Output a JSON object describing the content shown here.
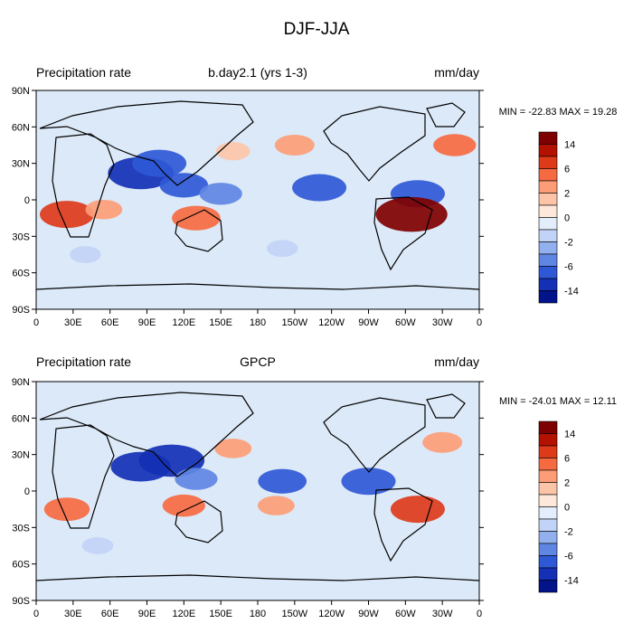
{
  "figure": {
    "title": "DJF-JJA"
  },
  "panels": [
    {
      "left_label": "Precipitation rate",
      "center_label": "b.day2.1 (yrs 1-3)",
      "right_label": "mm/day",
      "stats": "MIN = -22.83 MAX =  19.28"
    },
    {
      "left_label": "Precipitation rate",
      "center_label": "GPCP",
      "right_label": "mm/day",
      "stats": "MIN = -24.01 MAX =  12.11"
    }
  ],
  "chart_data": [
    {
      "type": "heatmap",
      "title": "b.day2.1 (yrs 1-3)",
      "units": "mm/day",
      "min": -22.83,
      "max": 19.28,
      "xlim": [
        0,
        360
      ],
      "ylim": [
        -90,
        90
      ],
      "x_ticks": [
        "0",
        "30E",
        "60E",
        "90E",
        "120E",
        "150E",
        "180",
        "150W",
        "120W",
        "90W",
        "60W",
        "30W",
        "0"
      ],
      "y_ticks": [
        "90N",
        "60N",
        "30N",
        "0",
        "30S",
        "60S",
        "90S"
      ],
      "features": [
        {
          "lon": 25,
          "lat": -12,
          "value": 10
        },
        {
          "lon": 55,
          "lat": -8,
          "value": 4
        },
        {
          "lon": 85,
          "lat": 22,
          "value": -14
        },
        {
          "lon": 100,
          "lat": 30,
          "value": -10
        },
        {
          "lon": 120,
          "lat": 12,
          "value": -8
        },
        {
          "lon": 150,
          "lat": 5,
          "value": -6
        },
        {
          "lon": 230,
          "lat": 10,
          "value": -10
        },
        {
          "lon": 310,
          "lat": 5,
          "value": -10
        },
        {
          "lon": 130,
          "lat": -15,
          "value": 8
        },
        {
          "lon": 305,
          "lat": -12,
          "value": 16
        },
        {
          "lon": 210,
          "lat": 45,
          "value": 5
        },
        {
          "lon": 340,
          "lat": 45,
          "value": 6
        },
        {
          "lon": 160,
          "lat": 40,
          "value": 3
        },
        {
          "lon": 40,
          "lat": -45,
          "value": -2
        },
        {
          "lon": 200,
          "lat": -40,
          "value": -2
        }
      ]
    },
    {
      "type": "heatmap",
      "title": "GPCP",
      "units": "mm/day",
      "min": -24.01,
      "max": 12.11,
      "xlim": [
        0,
        360
      ],
      "ylim": [
        -90,
        90
      ],
      "x_ticks": [
        "0",
        "30E",
        "60E",
        "90E",
        "120E",
        "150E",
        "180",
        "150W",
        "120W",
        "90W",
        "60W",
        "30W",
        "0"
      ],
      "y_ticks": [
        "90N",
        "60N",
        "30N",
        "0",
        "30S",
        "60S",
        "90S"
      ],
      "features": [
        {
          "lon": 25,
          "lat": -15,
          "value": 7
        },
        {
          "lon": 85,
          "lat": 20,
          "value": -12
        },
        {
          "lon": 110,
          "lat": 25,
          "value": -14
        },
        {
          "lon": 130,
          "lat": 10,
          "value": -6
        },
        {
          "lon": 200,
          "lat": 8,
          "value": -8
        },
        {
          "lon": 270,
          "lat": 8,
          "value": -10
        },
        {
          "lon": 120,
          "lat": -12,
          "value": 6
        },
        {
          "lon": 195,
          "lat": -12,
          "value": 4
        },
        {
          "lon": 310,
          "lat": -15,
          "value": 10
        },
        {
          "lon": 160,
          "lat": 35,
          "value": 4
        },
        {
          "lon": 330,
          "lat": 40,
          "value": 5
        },
        {
          "lon": 50,
          "lat": -45,
          "value": -2
        }
      ]
    }
  ],
  "colorbar": {
    "labels": [
      "14",
      "6",
      "2",
      "0",
      "-2",
      "-6",
      "-14"
    ],
    "colors": [
      "#7f0000",
      "#b41200",
      "#dd3a1a",
      "#f56a41",
      "#fc9d77",
      "#fdc5a8",
      "#fde8da",
      "#e3edfb",
      "#c1d3f6",
      "#92b0ed",
      "#5f86e3",
      "#2f58d6",
      "#1430b5",
      "#03138a"
    ]
  }
}
